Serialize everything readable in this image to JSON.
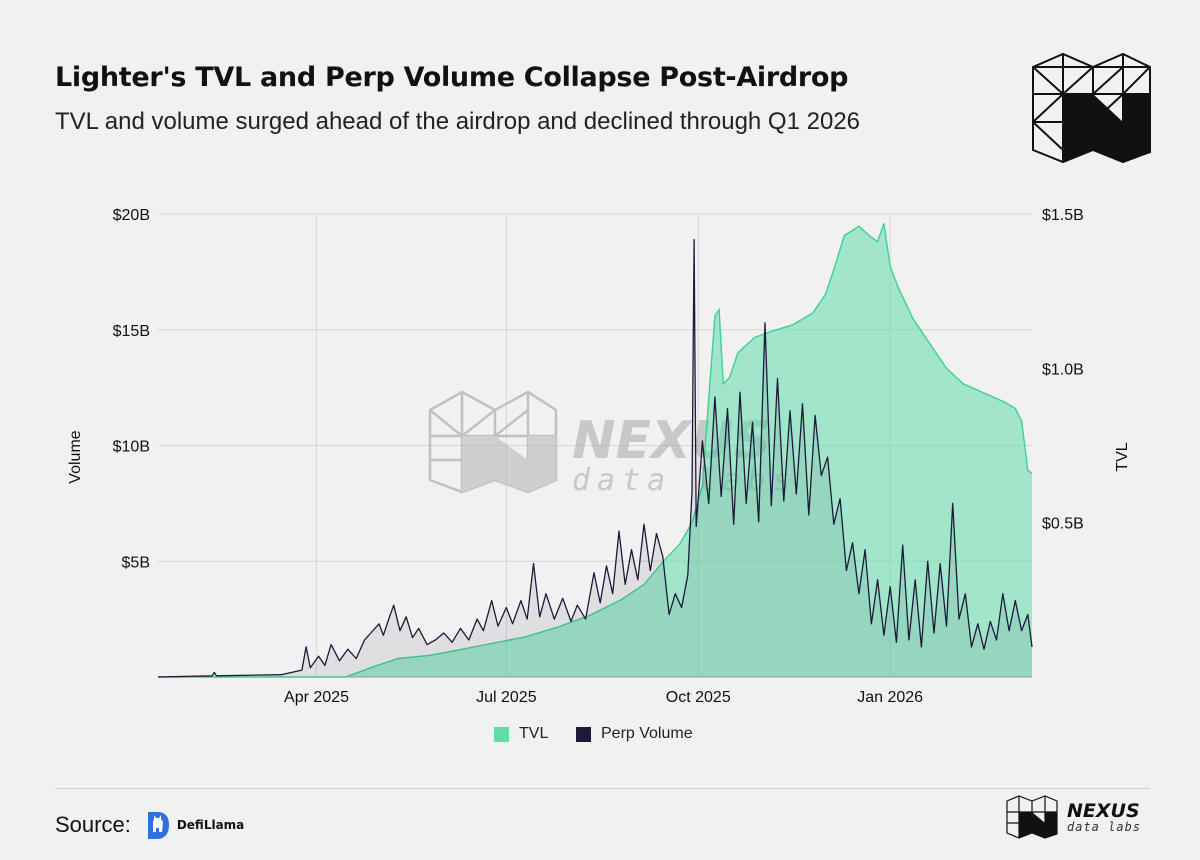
{
  "header": {
    "title": "Lighter's TVL and Perp Volume Collapse Post-Airdrop",
    "subtitle": "TVL and volume surged ahead of the airdrop and declined through Q1 2026"
  },
  "watermark": {
    "name": "NEXUS",
    "tagline": "data labs"
  },
  "footer": {
    "source_label": "Source:",
    "source_name": "DefiLlama",
    "brand_name": "NEXUS",
    "brand_tagline": "data labs"
  },
  "colors": {
    "tvl_fill": "#5fdcaa",
    "tvl_line": "#3fcf94",
    "volume_line": "#1a1a3a",
    "background": "#f1f1f1",
    "grid": "#d6d6d6"
  },
  "chart_data": {
    "type": "area",
    "title": "Lighter's TVL and Perp Volume Collapse Post-Airdrop",
    "x_tick_labels": [
      "Apr 2025",
      "Jul 2025",
      "Oct 2025",
      "Jan 2026"
    ],
    "x_tick_dates": [
      "2025-04-01",
      "2025-07-01",
      "2025-10-01",
      "2026-01-01"
    ],
    "x_range": [
      "2025-01-15",
      "2026-03-10"
    ],
    "left_axis": {
      "label": "Volume",
      "ticks": [
        "$5B",
        "$10B",
        "$15B",
        "$20B"
      ],
      "tick_values": [
        5,
        10,
        15,
        20
      ],
      "ylim": [
        0,
        20
      ],
      "unit": "B USD"
    },
    "right_axis": {
      "label": "TVL",
      "ticks": [
        "$0.5B",
        "$1.0B",
        "$1.5B"
      ],
      "tick_values": [
        0.5,
        1.0,
        1.5
      ],
      "ylim": [
        0,
        1.5
      ],
      "unit": "B USD"
    },
    "grid": true,
    "legend_position": "bottom-center",
    "series": [
      {
        "name": "TVL",
        "axis": "right",
        "type": "area",
        "points": [
          [
            "2025-01-15",
            0.0
          ],
          [
            "2025-04-15",
            0.0
          ],
          [
            "2025-04-27",
            0.03
          ],
          [
            "2025-05-10",
            0.06
          ],
          [
            "2025-05-25",
            0.07
          ],
          [
            "2025-06-10",
            0.09
          ],
          [
            "2025-06-25",
            0.11
          ],
          [
            "2025-07-10",
            0.13
          ],
          [
            "2025-07-25",
            0.16
          ],
          [
            "2025-08-10",
            0.2
          ],
          [
            "2025-08-25",
            0.25
          ],
          [
            "2025-09-05",
            0.3
          ],
          [
            "2025-09-15",
            0.38
          ],
          [
            "2025-09-22",
            0.43
          ],
          [
            "2025-09-28",
            0.5
          ],
          [
            "2025-10-03",
            0.62
          ],
          [
            "2025-10-06",
            0.9
          ],
          [
            "2025-10-09",
            1.17
          ],
          [
            "2025-10-11",
            1.19
          ],
          [
            "2025-10-13",
            0.95
          ],
          [
            "2025-10-16",
            0.97
          ],
          [
            "2025-10-20",
            1.05
          ],
          [
            "2025-10-28",
            1.1
          ],
          [
            "2025-11-05",
            1.12
          ],
          [
            "2025-11-15",
            1.14
          ],
          [
            "2025-11-25",
            1.18
          ],
          [
            "2025-12-01",
            1.24
          ],
          [
            "2025-12-05",
            1.32
          ],
          [
            "2025-12-10",
            1.43
          ],
          [
            "2025-12-17",
            1.46
          ],
          [
            "2025-12-22",
            1.43
          ],
          [
            "2025-12-26",
            1.41
          ],
          [
            "2025-12-29",
            1.47
          ],
          [
            "2026-01-01",
            1.33
          ],
          [
            "2026-01-05",
            1.26
          ],
          [
            "2026-01-12",
            1.16
          ],
          [
            "2026-01-20",
            1.08
          ],
          [
            "2026-01-28",
            1.0
          ],
          [
            "2026-02-05",
            0.95
          ],
          [
            "2026-02-15",
            0.92
          ],
          [
            "2026-02-25",
            0.89
          ],
          [
            "2026-03-02",
            0.87
          ],
          [
            "2026-03-05",
            0.83
          ],
          [
            "2026-03-08",
            0.67
          ],
          [
            "2026-03-10",
            0.66
          ]
        ]
      },
      {
        "name": "Perp Volume",
        "axis": "left",
        "type": "line",
        "points": [
          [
            "2025-01-15",
            0.0
          ],
          [
            "2025-02-10",
            0.05
          ],
          [
            "2025-02-11",
            0.2
          ],
          [
            "2025-02-12",
            0.05
          ],
          [
            "2025-03-15",
            0.1
          ],
          [
            "2025-03-25",
            0.3
          ],
          [
            "2025-03-27",
            1.3
          ],
          [
            "2025-03-29",
            0.4
          ],
          [
            "2025-04-02",
            0.9
          ],
          [
            "2025-04-05",
            0.5
          ],
          [
            "2025-04-08",
            1.4
          ],
          [
            "2025-04-12",
            0.7
          ],
          [
            "2025-04-16",
            1.2
          ],
          [
            "2025-04-20",
            0.8
          ],
          [
            "2025-04-24",
            1.6
          ],
          [
            "2025-04-27",
            1.9
          ],
          [
            "2025-05-01",
            2.3
          ],
          [
            "2025-05-03",
            1.8
          ],
          [
            "2025-05-06",
            2.6
          ],
          [
            "2025-05-08",
            3.1
          ],
          [
            "2025-05-11",
            2.0
          ],
          [
            "2025-05-14",
            2.6
          ],
          [
            "2025-05-17",
            1.7
          ],
          [
            "2025-05-20",
            2.1
          ],
          [
            "2025-05-24",
            1.4
          ],
          [
            "2025-05-28",
            1.6
          ],
          [
            "2025-06-01",
            1.9
          ],
          [
            "2025-06-05",
            1.5
          ],
          [
            "2025-06-09",
            2.1
          ],
          [
            "2025-06-13",
            1.6
          ],
          [
            "2025-06-17",
            2.5
          ],
          [
            "2025-06-20",
            2.0
          ],
          [
            "2025-06-24",
            3.3
          ],
          [
            "2025-06-27",
            2.2
          ],
          [
            "2025-07-01",
            3.0
          ],
          [
            "2025-07-04",
            2.3
          ],
          [
            "2025-07-08",
            3.3
          ],
          [
            "2025-07-11",
            2.5
          ],
          [
            "2025-07-14",
            4.9
          ],
          [
            "2025-07-17",
            2.6
          ],
          [
            "2025-07-20",
            3.6
          ],
          [
            "2025-07-24",
            2.5
          ],
          [
            "2025-07-28",
            3.4
          ],
          [
            "2025-08-01",
            2.4
          ],
          [
            "2025-08-04",
            3.1
          ],
          [
            "2025-08-08",
            2.5
          ],
          [
            "2025-08-12",
            4.5
          ],
          [
            "2025-08-15",
            3.2
          ],
          [
            "2025-08-18",
            4.8
          ],
          [
            "2025-08-21",
            3.6
          ],
          [
            "2025-08-24",
            6.3
          ],
          [
            "2025-08-27",
            4.0
          ],
          [
            "2025-08-30",
            5.5
          ],
          [
            "2025-09-02",
            4.2
          ],
          [
            "2025-09-05",
            6.6
          ],
          [
            "2025-09-08",
            4.6
          ],
          [
            "2025-09-11",
            6.2
          ],
          [
            "2025-09-14",
            5.2
          ],
          [
            "2025-09-17",
            2.7
          ],
          [
            "2025-09-20",
            3.6
          ],
          [
            "2025-09-23",
            3.0
          ],
          [
            "2025-09-26",
            4.4
          ],
          [
            "2025-09-28",
            8.0
          ],
          [
            "2025-09-29",
            18.9
          ],
          [
            "2025-09-30",
            6.5
          ],
          [
            "2025-10-03",
            10.2
          ],
          [
            "2025-10-06",
            7.5
          ],
          [
            "2025-10-09",
            12.1
          ],
          [
            "2025-10-12",
            7.8
          ],
          [
            "2025-10-15",
            11.6
          ],
          [
            "2025-10-18",
            6.6
          ],
          [
            "2025-10-21",
            12.3
          ],
          [
            "2025-10-24",
            7.5
          ],
          [
            "2025-10-27",
            11.0
          ],
          [
            "2025-10-30",
            6.7
          ],
          [
            "2025-11-02",
            15.3
          ],
          [
            "2025-11-05",
            7.4
          ],
          [
            "2025-11-08",
            12.9
          ],
          [
            "2025-11-11",
            7.6
          ],
          [
            "2025-11-14",
            11.5
          ],
          [
            "2025-11-17",
            7.9
          ],
          [
            "2025-11-20",
            11.8
          ],
          [
            "2025-11-23",
            7.0
          ],
          [
            "2025-11-26",
            11.3
          ],
          [
            "2025-11-29",
            8.7
          ],
          [
            "2025-12-02",
            9.5
          ],
          [
            "2025-12-05",
            6.6
          ],
          [
            "2025-12-08",
            7.7
          ],
          [
            "2025-12-11",
            4.6
          ],
          [
            "2025-12-14",
            5.8
          ],
          [
            "2025-12-17",
            3.6
          ],
          [
            "2025-12-20",
            5.5
          ],
          [
            "2025-12-23",
            2.3
          ],
          [
            "2025-12-26",
            4.2
          ],
          [
            "2025-12-29",
            1.8
          ],
          [
            "2026-01-01",
            3.9
          ],
          [
            "2026-01-04",
            1.5
          ],
          [
            "2026-01-07",
            5.7
          ],
          [
            "2026-01-10",
            1.6
          ],
          [
            "2026-01-13",
            4.2
          ],
          [
            "2026-01-16",
            1.3
          ],
          [
            "2026-01-19",
            5.0
          ],
          [
            "2026-01-22",
            1.9
          ],
          [
            "2026-01-25",
            4.9
          ],
          [
            "2026-01-28",
            2.2
          ],
          [
            "2026-01-31",
            7.5
          ],
          [
            "2026-02-03",
            2.5
          ],
          [
            "2026-02-06",
            3.6
          ],
          [
            "2026-02-09",
            1.3
          ],
          [
            "2026-02-12",
            2.3
          ],
          [
            "2026-02-15",
            1.2
          ],
          [
            "2026-02-18",
            2.4
          ],
          [
            "2026-02-21",
            1.6
          ],
          [
            "2026-02-24",
            3.6
          ],
          [
            "2026-02-27",
            2.0
          ],
          [
            "2026-03-02",
            3.3
          ],
          [
            "2026-03-05",
            2.0
          ],
          [
            "2026-03-08",
            2.7
          ],
          [
            "2026-03-10",
            1.3
          ]
        ]
      }
    ]
  }
}
